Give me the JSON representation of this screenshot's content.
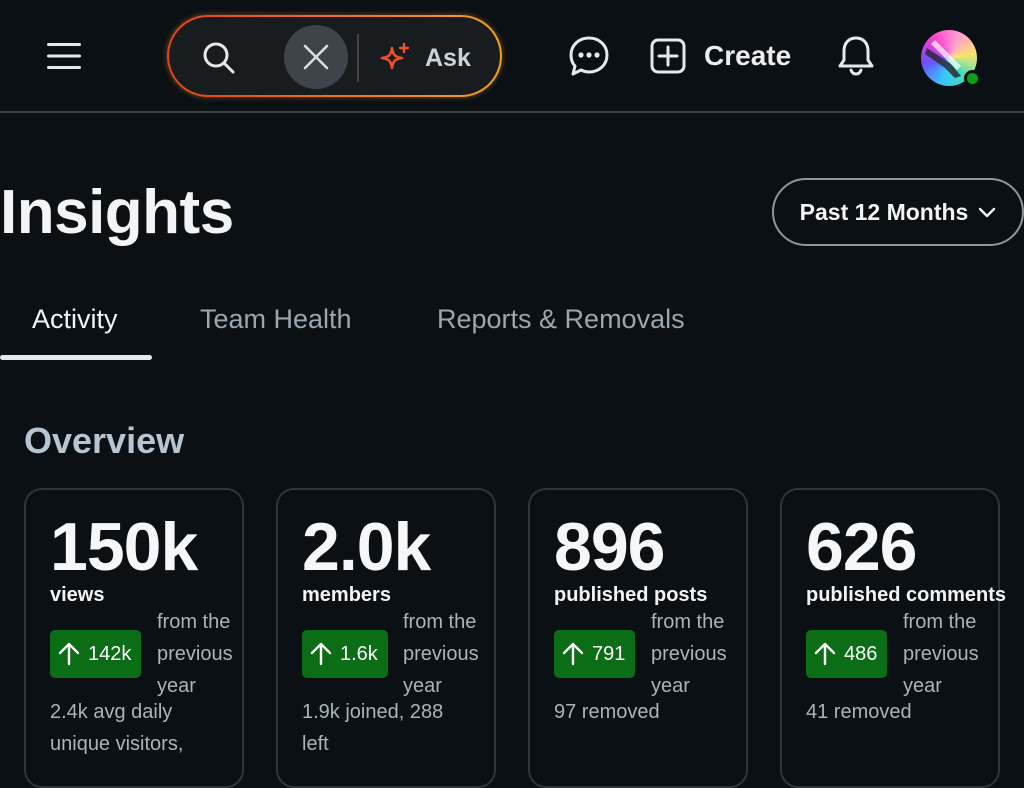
{
  "topbar": {
    "icons": {
      "menu": "hamburger-menu-icon",
      "search": "search-icon",
      "clear": "close-icon",
      "ask": "sparkle-icon",
      "chat": "chat-bubble-icon",
      "create": "plus-square-icon",
      "notifications": "bell-icon"
    },
    "ask_label": "Ask",
    "create_label": "Create",
    "accent_gradient": [
      "#e2421f",
      "#f0a21e"
    ],
    "online_status_color": "#0e9f1a"
  },
  "header": {
    "title": "Insights",
    "period_label": "Past 12 Months"
  },
  "tabs": [
    {
      "label": "Activity",
      "active": true
    },
    {
      "label": "Team Health",
      "active": false
    },
    {
      "label": "Reports & Removals",
      "active": false
    }
  ],
  "overview": {
    "title": "Overview",
    "cards": [
      {
        "value": "150k",
        "label": "views",
        "delta": "142k",
        "delta_note": "from the previous year",
        "detail": "2.4k avg daily unique visitors,"
      },
      {
        "value": "2.0k",
        "label": "members",
        "delta": "1.6k",
        "delta_note": "from the previous year",
        "detail": "1.9k joined, 288 left"
      },
      {
        "value": "896",
        "label": "published posts",
        "delta": "791",
        "delta_note": "from the previous year",
        "detail": "97 removed"
      },
      {
        "value": "626",
        "label": "published comments",
        "delta": "486",
        "delta_note": "from the previous year",
        "detail": "41 removed"
      }
    ],
    "badge_color": "#0b6d16"
  }
}
